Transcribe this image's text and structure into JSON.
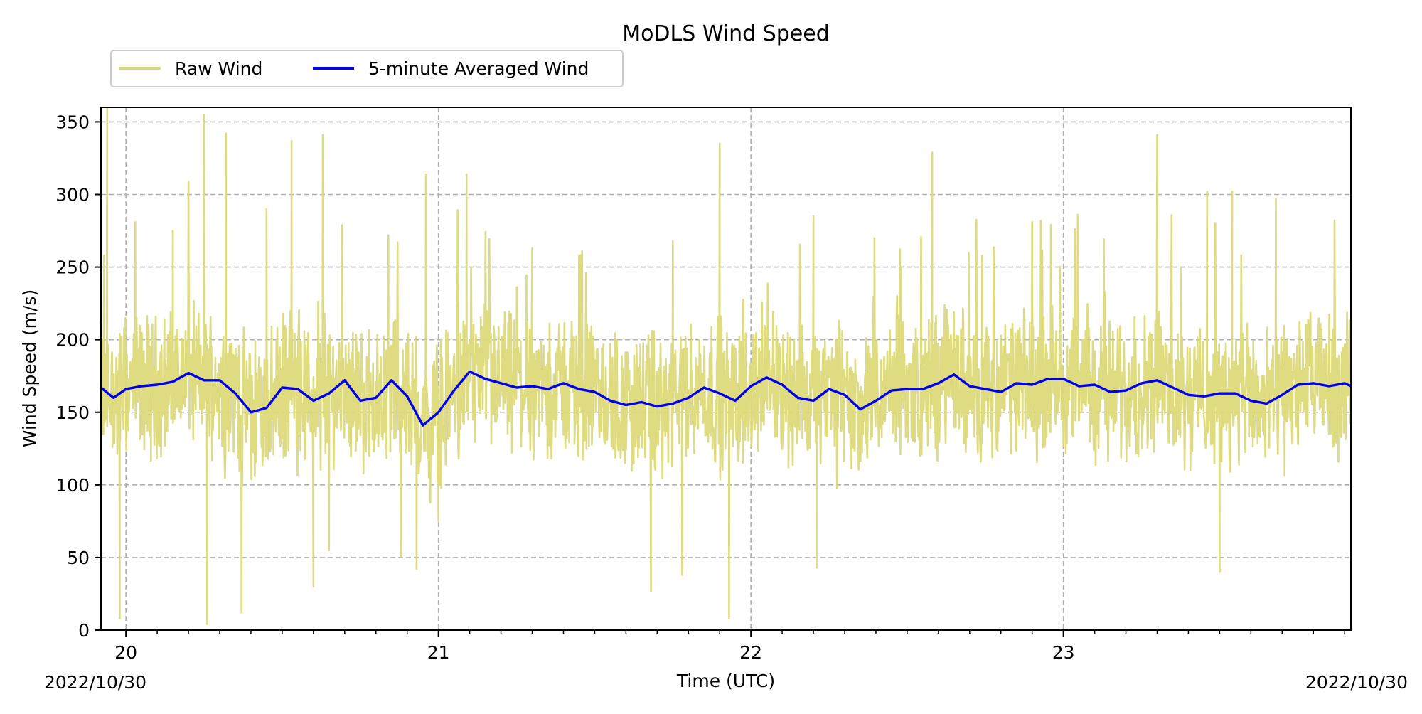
{
  "chart_data": {
    "type": "line",
    "title": "MoDLS Wind Speed",
    "xlabel": "Time (UTC)",
    "ylabel": "Wind Speed (m/s)",
    "x_start_label": "2022/10/30",
    "x_end_label": "2022/10/30",
    "xlim": [
      19.92,
      23.92
    ],
    "ylim": [
      0,
      360
    ],
    "x_major_ticks": [
      20,
      21,
      22,
      23
    ],
    "x_major_tick_labels": [
      "20",
      "21",
      "22",
      "23"
    ],
    "y_ticks": [
      0,
      50,
      100,
      150,
      200,
      250,
      300,
      350
    ],
    "y_tick_labels": [
      "0",
      "50",
      "100",
      "150",
      "200",
      "250",
      "300",
      "350"
    ],
    "grid": true,
    "legend_position": "above-left",
    "series": [
      {
        "name": "Raw Wind",
        "color": "#dcd97a",
        "style": "noisy",
        "mean_around_avg": true,
        "typical_range": [
          110,
          210
        ],
        "x": [
          19.93,
          19.94,
          19.98,
          20.03,
          20.15,
          20.2,
          20.25,
          20.26,
          20.32,
          20.37,
          20.45,
          20.53,
          20.6,
          20.63,
          20.65,
          20.84,
          20.88,
          20.93,
          20.96,
          21.0,
          21.06,
          21.09,
          21.3,
          21.45,
          21.68,
          21.75,
          21.78,
          21.9,
          21.93,
          22.2,
          22.21,
          22.48,
          22.58,
          22.74,
          22.9,
          22.96,
          23.3,
          23.46,
          23.5,
          23.54,
          23.68
        ],
        "y": [
          258,
          360,
          8,
          281,
          275,
          309,
          355,
          4,
          342,
          12,
          290,
          337,
          30,
          341,
          55,
          272,
          51,
          42,
          314,
          75,
          225,
          314,
          263,
          258,
          27,
          268,
          38,
          335,
          8,
          285,
          43,
          250,
          329,
          258,
          281,
          279,
          341,
          302,
          40,
          302,
          297
        ]
      },
      {
        "name": "5-minute Averaged Wind",
        "color": "#0000ee",
        "style": "line",
        "x": [
          19.92,
          19.96,
          20.0,
          20.05,
          20.1,
          20.15,
          20.2,
          20.25,
          20.3,
          20.35,
          20.4,
          20.45,
          20.5,
          20.55,
          20.6,
          20.65,
          20.7,
          20.75,
          20.8,
          20.85,
          20.9,
          20.95,
          21.0,
          21.05,
          21.1,
          21.15,
          21.2,
          21.25,
          21.3,
          21.35,
          21.4,
          21.45,
          21.5,
          21.55,
          21.6,
          21.65,
          21.7,
          21.75,
          21.8,
          21.85,
          21.9,
          21.95,
          22.0,
          22.05,
          22.1,
          22.15,
          22.2,
          22.25,
          22.3,
          22.35,
          22.4,
          22.45,
          22.5,
          22.55,
          22.6,
          22.65,
          22.7,
          22.75,
          22.8,
          22.85,
          22.9,
          22.95,
          23.0,
          23.05,
          23.1,
          23.15,
          23.2,
          23.25,
          23.3,
          23.35,
          23.4,
          23.45,
          23.5,
          23.55,
          23.6,
          23.65,
          23.7,
          23.75,
          23.8,
          23.85,
          23.9,
          23.92
        ],
        "y": [
          167,
          160,
          166,
          168,
          169,
          171,
          177,
          172,
          172,
          163,
          150,
          153,
          167,
          166,
          158,
          163,
          172,
          158,
          160,
          172,
          161,
          141,
          150,
          165,
          178,
          173,
          170,
          167,
          168,
          166,
          170,
          166,
          164,
          158,
          155,
          157,
          154,
          156,
          160,
          167,
          163,
          158,
          168,
          174,
          169,
          160,
          158,
          166,
          162,
          152,
          158,
          165,
          166,
          166,
          170,
          176,
          168,
          166,
          164,
          170,
          169,
          173,
          173,
          168,
          169,
          164,
          165,
          170,
          172,
          167,
          162,
          161,
          163,
          163,
          158,
          156,
          162,
          169,
          170,
          168,
          170,
          168
        ]
      }
    ]
  }
}
